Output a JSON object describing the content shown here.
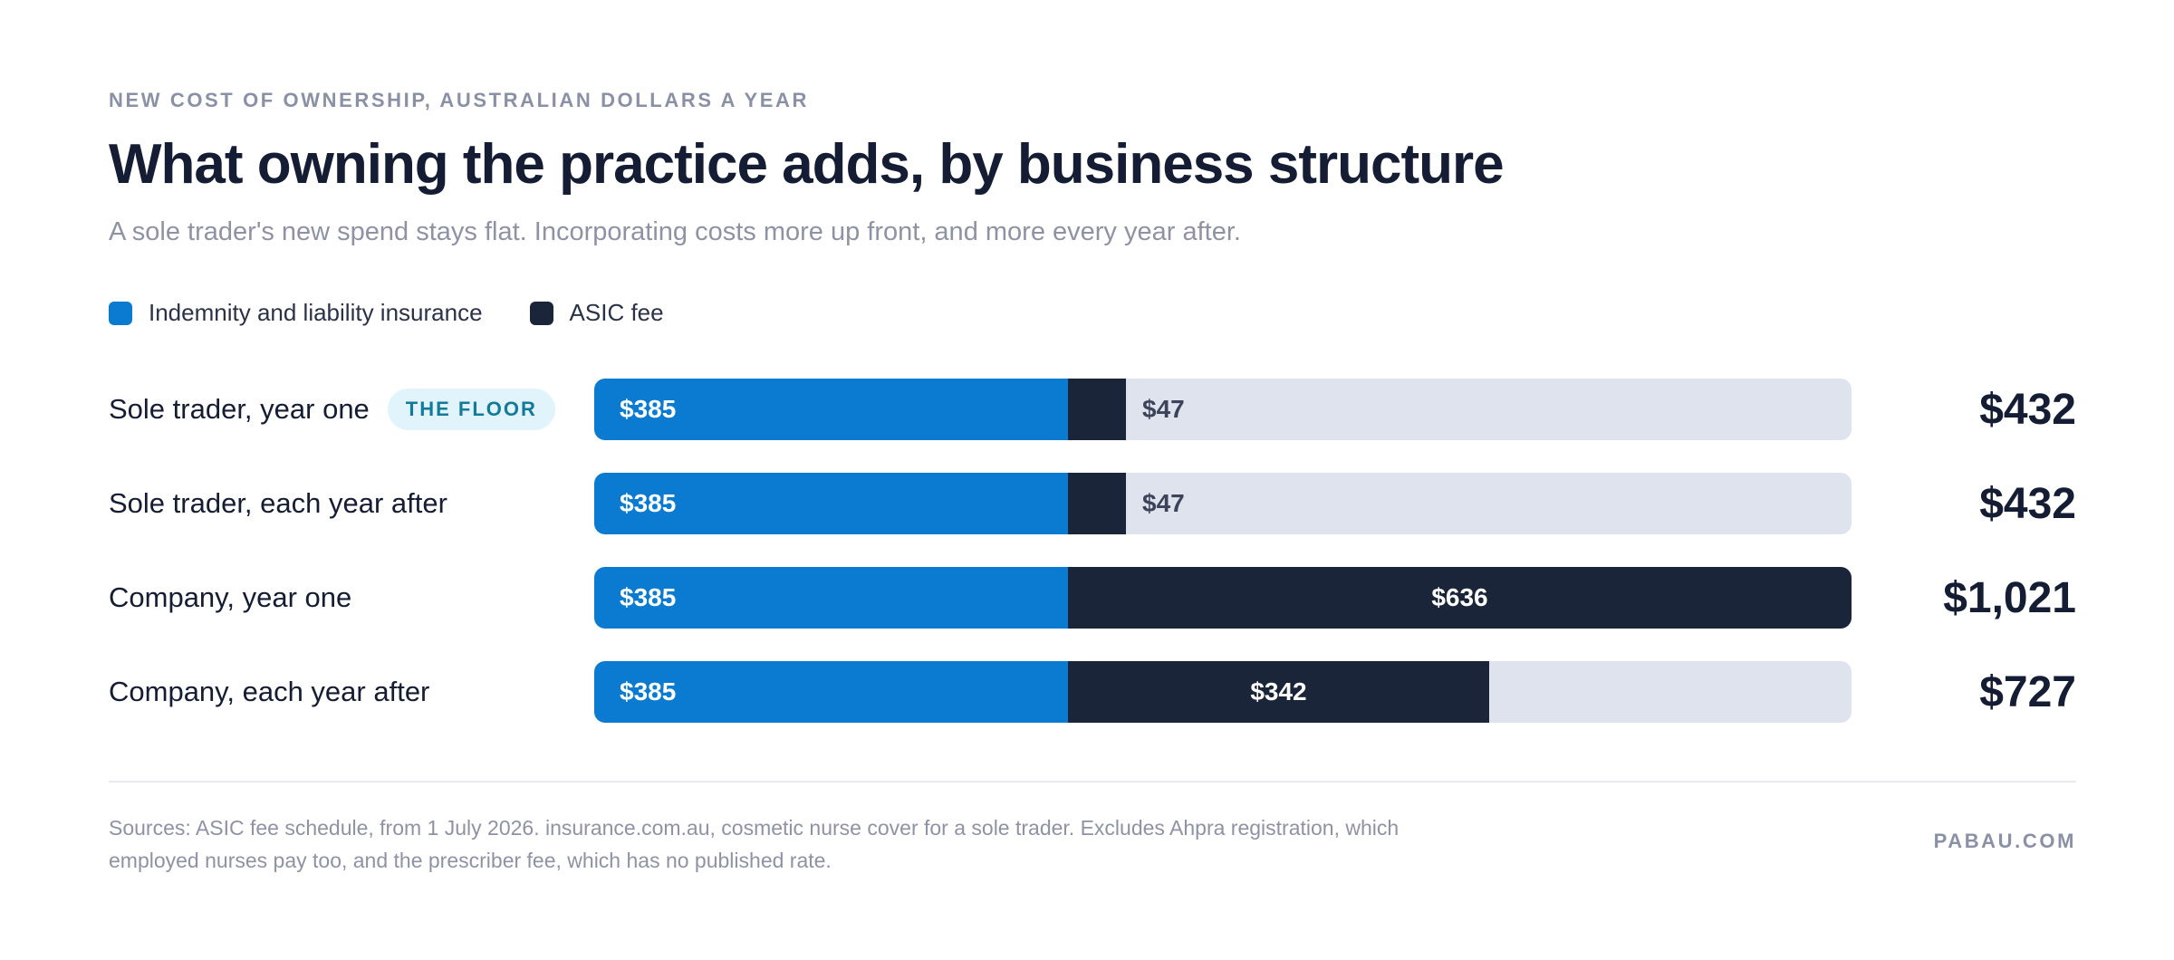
{
  "eyebrow": "NEW COST OF OWNERSHIP, AUSTRALIAN DOLLARS A YEAR",
  "title": "What owning the practice adds, by business structure",
  "subtitle": "A sole trader's new spend stays flat. Incorporating costs more up front, and more every year after.",
  "colors": {
    "insurance": "#0a7bd1",
    "asic": "#1b2539",
    "track": "#dfe3ee",
    "badge_bg": "#e1f4fb",
    "badge_text": "#137a9c"
  },
  "legend": [
    {
      "label": "Indemnity and liability insurance",
      "color": "#0a7bd1"
    },
    {
      "label": "ASIC fee",
      "color": "#1b2539"
    }
  ],
  "chart_data": {
    "type": "bar",
    "orientation": "horizontal",
    "stacked": true,
    "categories": [
      "Sole trader, year one",
      "Sole trader, each year after",
      "Company, year one",
      "Company, each year after"
    ],
    "series": [
      {
        "name": "Indemnity and liability insurance",
        "values": [
          385,
          385,
          385,
          385
        ],
        "labels": [
          "$385",
          "$385",
          "$385",
          "$385"
        ]
      },
      {
        "name": "ASIC fee",
        "values": [
          47,
          47,
          636,
          342
        ],
        "labels": [
          "$47",
          "$47",
          "$636",
          "$342"
        ]
      }
    ],
    "totals": [
      "$432",
      "$432",
      "$1,021",
      "$727"
    ],
    "xlim": [
      0,
      1021
    ],
    "annotations": [
      {
        "category": "Sole trader, year one",
        "text": "THE FLOOR"
      }
    ],
    "grid": false,
    "legend_position": "top-left"
  },
  "footer": {
    "sources": "Sources: ASIC fee schedule, from 1 July 2026. insurance.com.au, cosmetic nurse cover for a sole trader. Excludes Ahpra registration, which employed nurses pay too, and the prescriber fee, which has no published rate.",
    "brand": "PABAU.COM"
  }
}
